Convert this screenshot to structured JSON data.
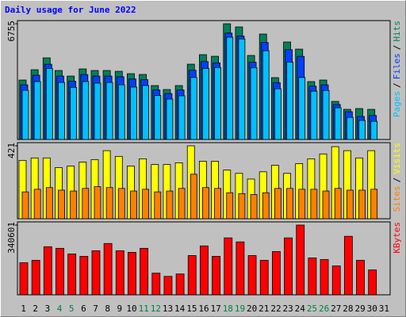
{
  "title": "Daily usage for June 2022",
  "categories": [
    "1",
    "2",
    "3",
    "4",
    "5",
    "6",
    "7",
    "8",
    "9",
    "10",
    "11",
    "12",
    "13",
    "14",
    "15",
    "16",
    "17",
    "18",
    "19",
    "20",
    "21",
    "22",
    "23",
    "24",
    "25",
    "26",
    "27",
    "28",
    "29",
    "30",
    "31"
  ],
  "weekend_categories": [
    "4",
    "5",
    "11",
    "12",
    "18",
    "19",
    "25",
    "26"
  ],
  "weekend_color": "#008040",
  "legend_separator": "/",
  "chart_data": [
    {
      "type": "bar",
      "ylim": [
        0,
        6755
      ],
      "yticks": [
        6755
      ],
      "series": [
        {
          "name": "Hits",
          "color": "#00805C",
          "values": [
            3470,
            4071,
            4765,
            4025,
            3701,
            4118,
            4025,
            4025,
            3979,
            3840,
            3794,
            3146,
            2915,
            3146,
            4395,
            4951,
            4858,
            6755,
            6570,
            4904,
            6154,
            3609,
            5691,
            5274,
            3378,
            3470,
            2221,
            1758,
            1804,
            1758,
            null
          ]
        },
        {
          "name": "Files",
          "color": "#0040FF",
          "values": [
            3190,
            3750,
            4390,
            3700,
            3400,
            3790,
            3700,
            3700,
            3660,
            3530,
            3490,
            2890,
            2680,
            2890,
            4040,
            4550,
            4470,
            6210,
            6040,
            4510,
            5660,
            3320,
            5240,
            4850,
            3110,
            3190,
            2040,
            1620,
            1340,
            1400,
            null
          ]
        },
        {
          "name": "Pages",
          "color": "#00C0FF",
          "values": [
            2870,
            3380,
            4150,
            3330,
            3040,
            3380,
            3290,
            3330,
            3190,
            3060,
            3150,
            2570,
            2360,
            2550,
            3620,
            4150,
            4200,
            5970,
            5870,
            4190,
            5180,
            2960,
            4520,
            3620,
            2820,
            2860,
            1850,
            1290,
            1110,
            1060,
            null
          ]
        }
      ]
    },
    {
      "type": "bar",
      "ylim": [
        0,
        421
      ],
      "yticks": [
        421
      ],
      "series": [
        {
          "name": "Visits",
          "color": "#FFFF00",
          "values": [
            337,
            351,
            351,
            295,
            304,
            327,
            341,
            393,
            360,
            304,
            346,
            313,
            313,
            323,
            421,
            332,
            332,
            281,
            262,
            229,
            271,
            309,
            262,
            318,
            346,
            374,
            416,
            393,
            351,
            393,
            null
          ]
        },
        {
          "name": "Sites",
          "color": "#FF8000",
          "values": [
            155,
            170,
            180,
            165,
            160,
            175,
            185,
            180,
            175,
            160,
            170,
            155,
            160,
            175,
            257,
            180,
            175,
            150,
            145,
            140,
            150,
            175,
            175,
            170,
            170,
            160,
            175,
            165,
            165,
            170,
            null
          ]
        }
      ]
    },
    {
      "type": "bar",
      "ylim": [
        0,
        340601
      ],
      "yticks": [
        340601
      ],
      "series": [
        {
          "name": "KBytes",
          "color": "#FF0000",
          "values": [
            156600,
            168300,
            234900,
            227100,
            199700,
            187900,
            215300,
            250600,
            215300,
            207500,
            227100,
            105700,
            90000,
            101800,
            191800,
            238800,
            187900,
            278000,
            258400,
            191800,
            168300,
            211400,
            278000,
            340601,
            180100,
            172300,
            141000,
            285800,
            168300,
            121400,
            null
          ]
        }
      ]
    }
  ]
}
